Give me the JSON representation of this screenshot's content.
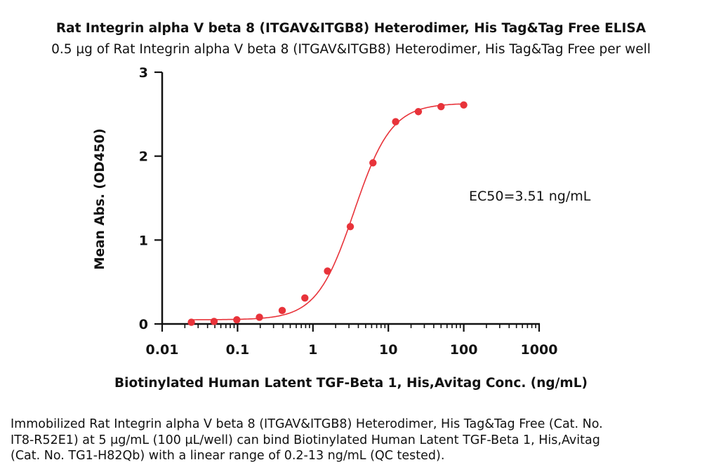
{
  "chart_data": {
    "type": "scatter",
    "title": "Rat Integrin alpha V beta 8 (ITGAV&ITGB8) Heterodimer, His Tag&Tag Free ELISA",
    "subtitle": "0.5 µg of Rat Integrin alpha V beta 8 (ITGAV&ITGB8) Heterodimer, His Tag&Tag Free per well",
    "xlabel": "Biotinylated Human Latent TGF-Beta 1, His,Avitag Conc. (ng/mL)",
    "ylabel": "Mean Abs. (OD450)",
    "x_scale": "log",
    "xlim": [
      0.01,
      1000
    ],
    "ylim": [
      0,
      3
    ],
    "x_ticks": [
      {
        "value": 0.01,
        "label": "0.01"
      },
      {
        "value": 0.1,
        "label": "0.1"
      },
      {
        "value": 1,
        "label": "1"
      },
      {
        "value": 10,
        "label": "10"
      },
      {
        "value": 100,
        "label": "100"
      },
      {
        "value": 1000,
        "label": "1000"
      }
    ],
    "y_ticks": [
      {
        "value": 0,
        "label": "0"
      },
      {
        "value": 1,
        "label": "1"
      },
      {
        "value": 2,
        "label": "2"
      },
      {
        "value": 3,
        "label": "3"
      }
    ],
    "color": "#e8333a",
    "series": [
      {
        "x": [
          0.0244,
          0.0488,
          0.0977,
          0.195,
          0.391,
          0.781,
          1.56,
          3.13,
          6.25,
          12.5,
          25,
          50,
          100
        ],
        "y": [
          0.02,
          0.03,
          0.05,
          0.08,
          0.16,
          0.31,
          0.63,
          1.16,
          1.92,
          2.41,
          2.53,
          2.59,
          2.61
        ]
      }
    ],
    "fit": {
      "bottom": 0.05,
      "top": 2.63,
      "ec50": 3.51,
      "hill": 1.75,
      "x_range": [
        0.0244,
        100
      ]
    },
    "annotation": "EC50=3.51 ng/mL"
  },
  "caption": "Immobilized Rat Integrin alpha V beta 8 (ITGAV&ITGB8) Heterodimer, His Tag&Tag Free (Cat. No. IT8-R52E1) at 5 μg/mL (100 μL/well) can bind Biotinylated Human Latent TGF-Beta 1, His,Avitag (Cat. No. TG1-H82Qb) with a linear range of 0.2-13 ng/mL (QC tested)."
}
